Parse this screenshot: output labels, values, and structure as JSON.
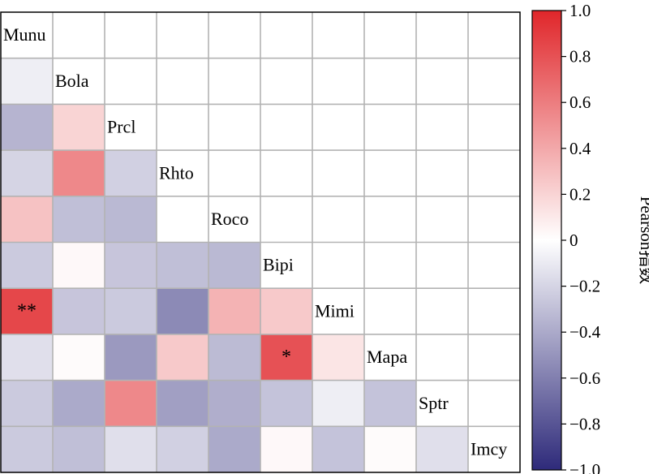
{
  "chart_data": {
    "type": "heatmap",
    "title": "",
    "variables": [
      "Munu",
      "Bola",
      "Prcl",
      "Rhto",
      "Roco",
      "Bipi",
      "Mimi",
      "Mapa",
      "Sptr",
      "Imcy"
    ],
    "lower_triangle": [
      [],
      [
        -0.08
      ],
      [
        -0.35,
        0.2
      ],
      [
        -0.2,
        0.55,
        -0.22
      ],
      [
        0.28,
        -0.3,
        -0.33,
        0.0
      ],
      [
        -0.25,
        0.03,
        -0.27,
        -0.3,
        -0.33
      ],
      [
        0.85,
        -0.27,
        -0.25,
        -0.55,
        0.35,
        0.25
      ],
      [
        -0.15,
        0.02,
        -0.48,
        0.25,
        -0.32,
        0.8,
        0.12
      ],
      [
        -0.25,
        -0.4,
        0.55,
        -0.45,
        -0.38,
        -0.28,
        -0.08,
        -0.28
      ],
      [
        -0.25,
        -0.3,
        -0.15,
        -0.22,
        -0.4,
        0.03,
        -0.28,
        0.02,
        -0.15
      ]
    ],
    "significance": [
      {
        "row": 6,
        "col": 0,
        "mark": "**"
      },
      {
        "row": 7,
        "col": 5,
        "mark": "*"
      }
    ],
    "colorbar": {
      "label": "Pearson指数",
      "min": -1.0,
      "max": 1.0,
      "ticks": [
        "1.0",
        "0.8",
        "0.6",
        "0.4",
        "0.2",
        "0",
        "−0.2",
        "−0.4",
        "−0.6",
        "−0.8",
        "−1.0"
      ],
      "colors": {
        "neg": "#2e2a7a",
        "mid": "#ffffff",
        "pos": "#e0262a"
      }
    },
    "grid_color": "#b3b3b3"
  }
}
